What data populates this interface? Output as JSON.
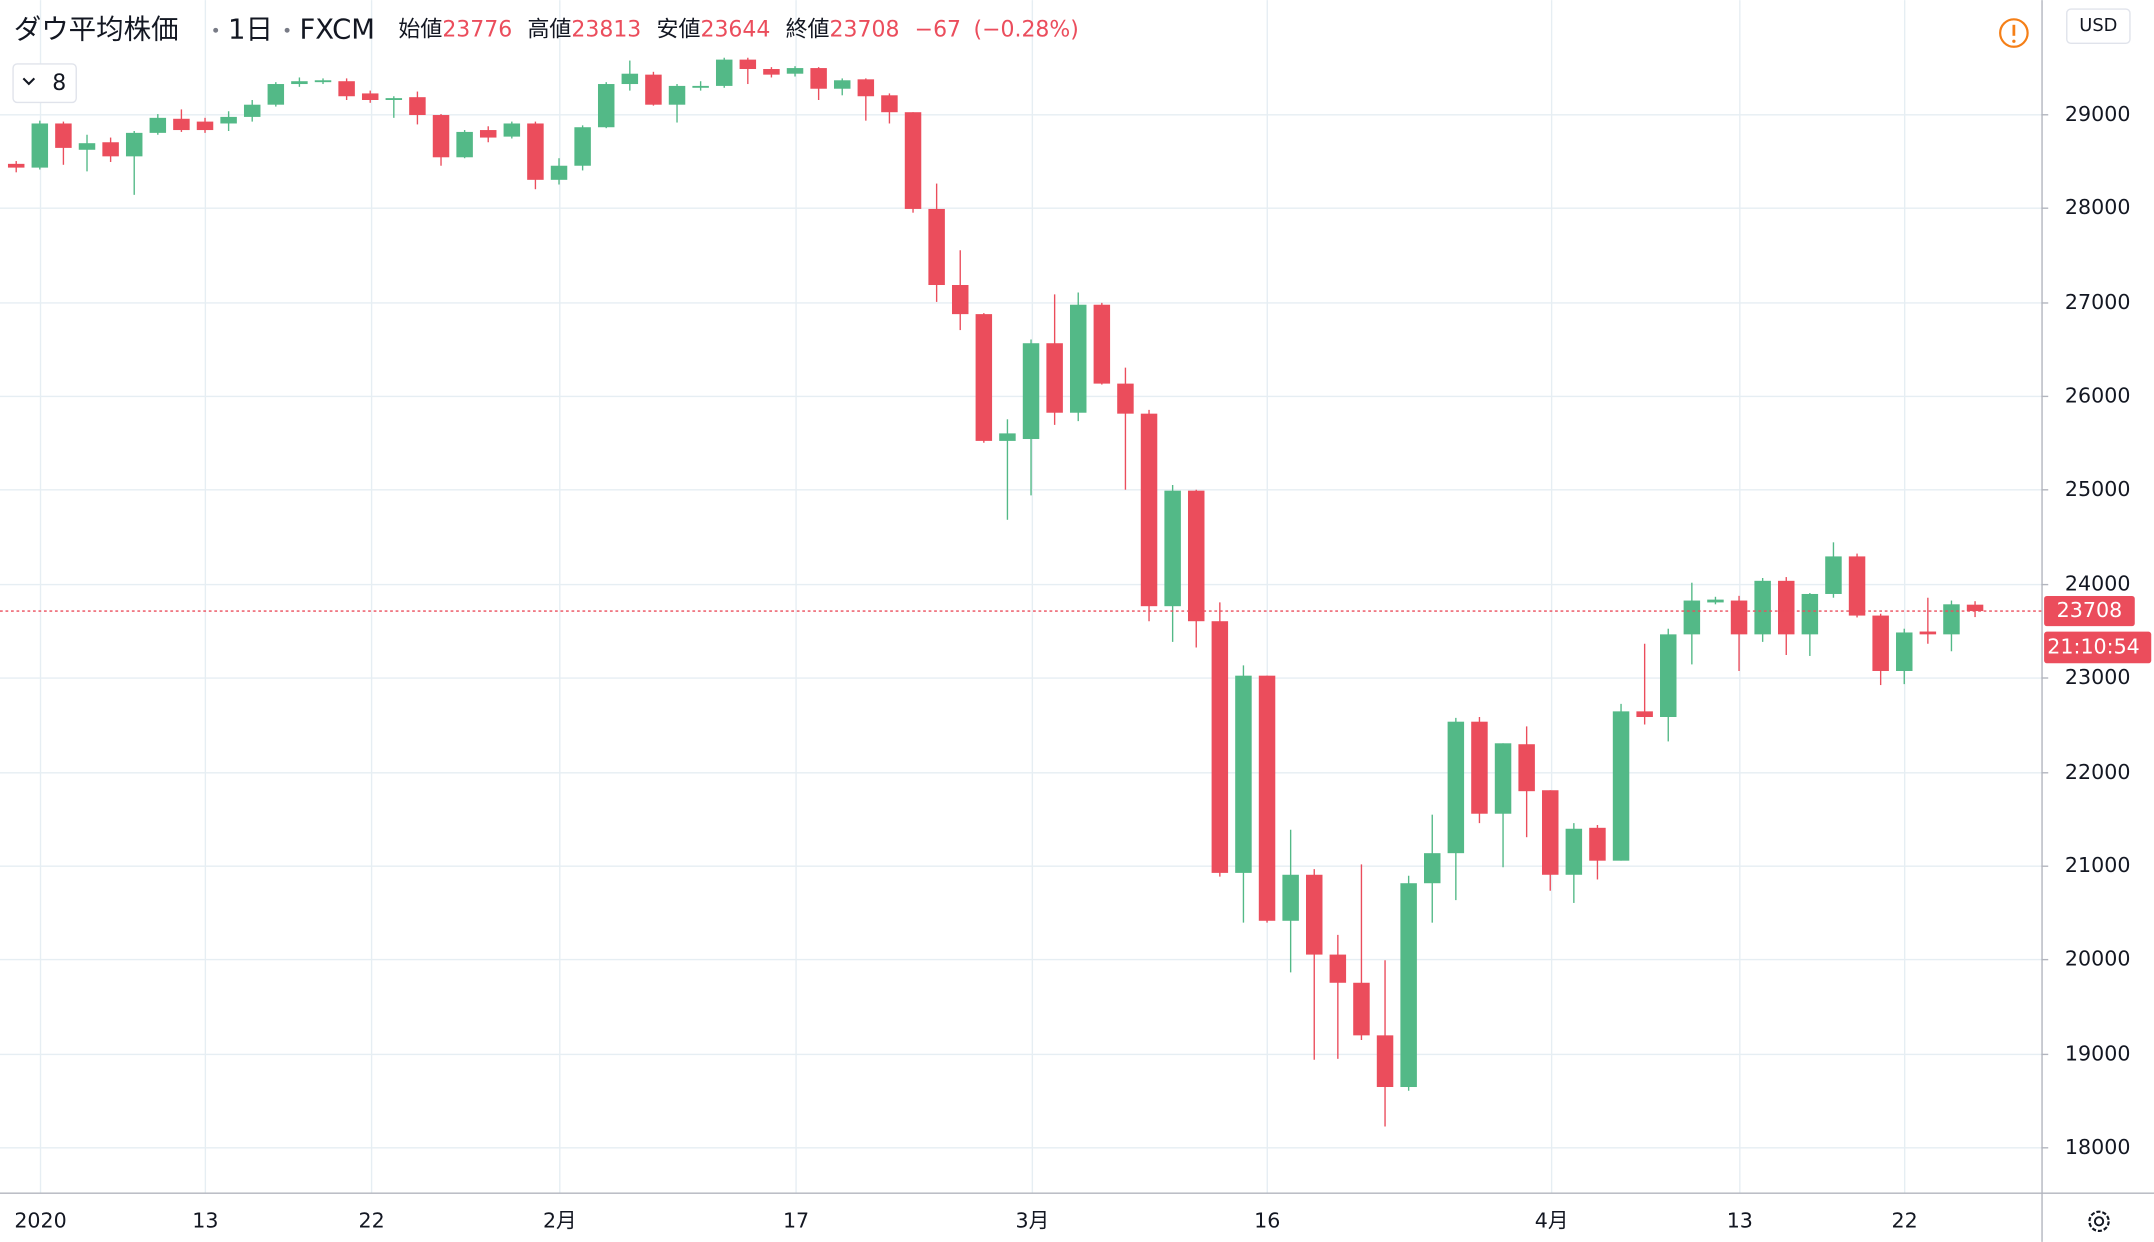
{
  "chart_data": {
    "type": "candlestick",
    "title": "ダウ平均株価",
    "interval": "1日",
    "source": "FXCM",
    "ohlc_labels": [
      "始値",
      "高値",
      "安値",
      "終値"
    ],
    "change": "−67",
    "change_pct": "(−0.28%)",
    "indicator_count": "8",
    "currency": "USD",
    "countdown": "21:10:54",
    "up_color": "#53b987",
    "down_color": "#eb4d5c",
    "grid": true,
    "categories": [
      null,
      "2020",
      null,
      null,
      null,
      null,
      null,
      null,
      "13",
      null,
      null,
      null,
      null,
      null,
      null,
      "22",
      null,
      null,
      null,
      null,
      null,
      null,
      null,
      "2月",
      null,
      null,
      null,
      null,
      null,
      null,
      null,
      null,
      null,
      "17",
      null,
      null,
      null,
      null,
      null,
      null,
      null,
      null,
      null,
      "3月",
      null,
      null,
      null,
      null,
      null,
      null,
      null,
      null,
      null,
      "16",
      null,
      null,
      null,
      null,
      null,
      null,
      null,
      null,
      null,
      null,
      null,
      "4月",
      null,
      null,
      null,
      null,
      null,
      null,
      null,
      "13",
      null,
      null,
      null,
      null,
      null,
      null,
      "22",
      null,
      null,
      null
    ],
    "open": [
      28470,
      28430,
      28900,
      28620,
      28700,
      28550,
      28800,
      28950,
      28920,
      28900,
      28970,
      29100,
      29320,
      29340,
      29350,
      29220,
      29150,
      29180,
      28990,
      28540,
      28830,
      28760,
      28900,
      28300,
      28450,
      28860,
      29320,
      29420,
      29100,
      29280,
      29300,
      29580,
      29480,
      29430,
      29490,
      29270,
      29370,
      29200,
      29020,
      27990,
      27180,
      26870,
      25520,
      25540,
      26560,
      25820,
      26970,
      26130,
      25810,
      23760,
      24990,
      23600,
      20920,
      23020,
      20410,
      20900,
      20050,
      19750,
      19190,
      18640,
      20810,
      21130,
      22530,
      21550,
      22290,
      21800,
      20900,
      21400,
      21050,
      22640,
      22580,
      23460,
      23800,
      23820,
      23460,
      24030,
      23460,
      23890,
      24290,
      23660,
      23070,
      23490,
      23460,
      23776
    ],
    "high": [
      28500,
      28930,
      28920,
      28780,
      28750,
      28820,
      29000,
      29050,
      28960,
      29030,
      29150,
      29340,
      29390,
      29380,
      29380,
      29250,
      29190,
      29240,
      29000,
      28830,
      28870,
      28920,
      28920,
      28530,
      28880,
      29340,
      29570,
      29450,
      29320,
      29350,
      29600,
      29600,
      29500,
      29510,
      29500,
      29380,
      29380,
      29220,
      29020,
      28260,
      27550,
      26880,
      25750,
      26600,
      27080,
      27100,
      26990,
      26300,
      25850,
      25050,
      25000,
      23800,
      23130,
      23020,
      21380,
      20960,
      20260,
      21010,
      19990,
      20890,
      21540,
      22570,
      22580,
      22300,
      22480,
      21800,
      21450,
      21430,
      22720,
      23360,
      23520,
      24010,
      23860,
      23870,
      24060,
      24070,
      23900,
      24440,
      24320,
      23680,
      23520,
      23850,
      23820,
      23813
    ],
    "low": [
      28380,
      28410,
      28460,
      28390,
      28490,
      28140,
      28780,
      28810,
      28800,
      28820,
      28920,
      29080,
      29290,
      29320,
      29150,
      29120,
      28960,
      28890,
      28450,
      28530,
      28700,
      28740,
      28200,
      28250,
      28400,
      28850,
      29250,
      29090,
      28910,
      29250,
      29280,
      29320,
      29390,
      29400,
      29150,
      29200,
      28930,
      28900,
      27950,
      27000,
      26700,
      25500,
      24680,
      24940,
      25690,
      25730,
      26120,
      25000,
      23600,
      23380,
      23320,
      20880,
      20390,
      20390,
      19860,
      18930,
      18940,
      19140,
      18220,
      18600,
      20390,
      20630,
      21450,
      20980,
      21300,
      20730,
      20600,
      20850,
      21050,
      22500,
      22320,
      23140,
      23780,
      23070,
      23380,
      23240,
      23230,
      23850,
      23640,
      22920,
      22930,
      23360,
      23280,
      23644
    ],
    "close": [
      28430,
      28900,
      28640,
      28690,
      28550,
      28800,
      28960,
      28830,
      28830,
      28970,
      29100,
      29320,
      29350,
      29360,
      29190,
      29150,
      29170,
      28990,
      28540,
      28810,
      28750,
      28900,
      28300,
      28450,
      28860,
      29320,
      29430,
      29100,
      29300,
      29300,
      29580,
      29480,
      29420,
      29490,
      29270,
      29360,
      29190,
      29020,
      27990,
      27180,
      26870,
      25520,
      25600,
      26560,
      25820,
      26970,
      26130,
      25810,
      23760,
      24990,
      23600,
      20920,
      23020,
      20410,
      20900,
      20050,
      19750,
      19190,
      18640,
      20810,
      21130,
      22530,
      21550,
      22300,
      21790,
      20900,
      21390,
      21050,
      22640,
      22580,
      23460,
      23820,
      23830,
      23460,
      24030,
      23460,
      23890,
      24290,
      23660,
      23070,
      23480,
      23460,
      23780,
      23708
    ],
    "ylim": [
      17517,
      30214
    ],
    "yticks": [
      18000,
      19000,
      20000,
      21000,
      22000,
      23000,
      24000,
      25000,
      26000,
      27000,
      28000,
      29000
    ]
  }
}
